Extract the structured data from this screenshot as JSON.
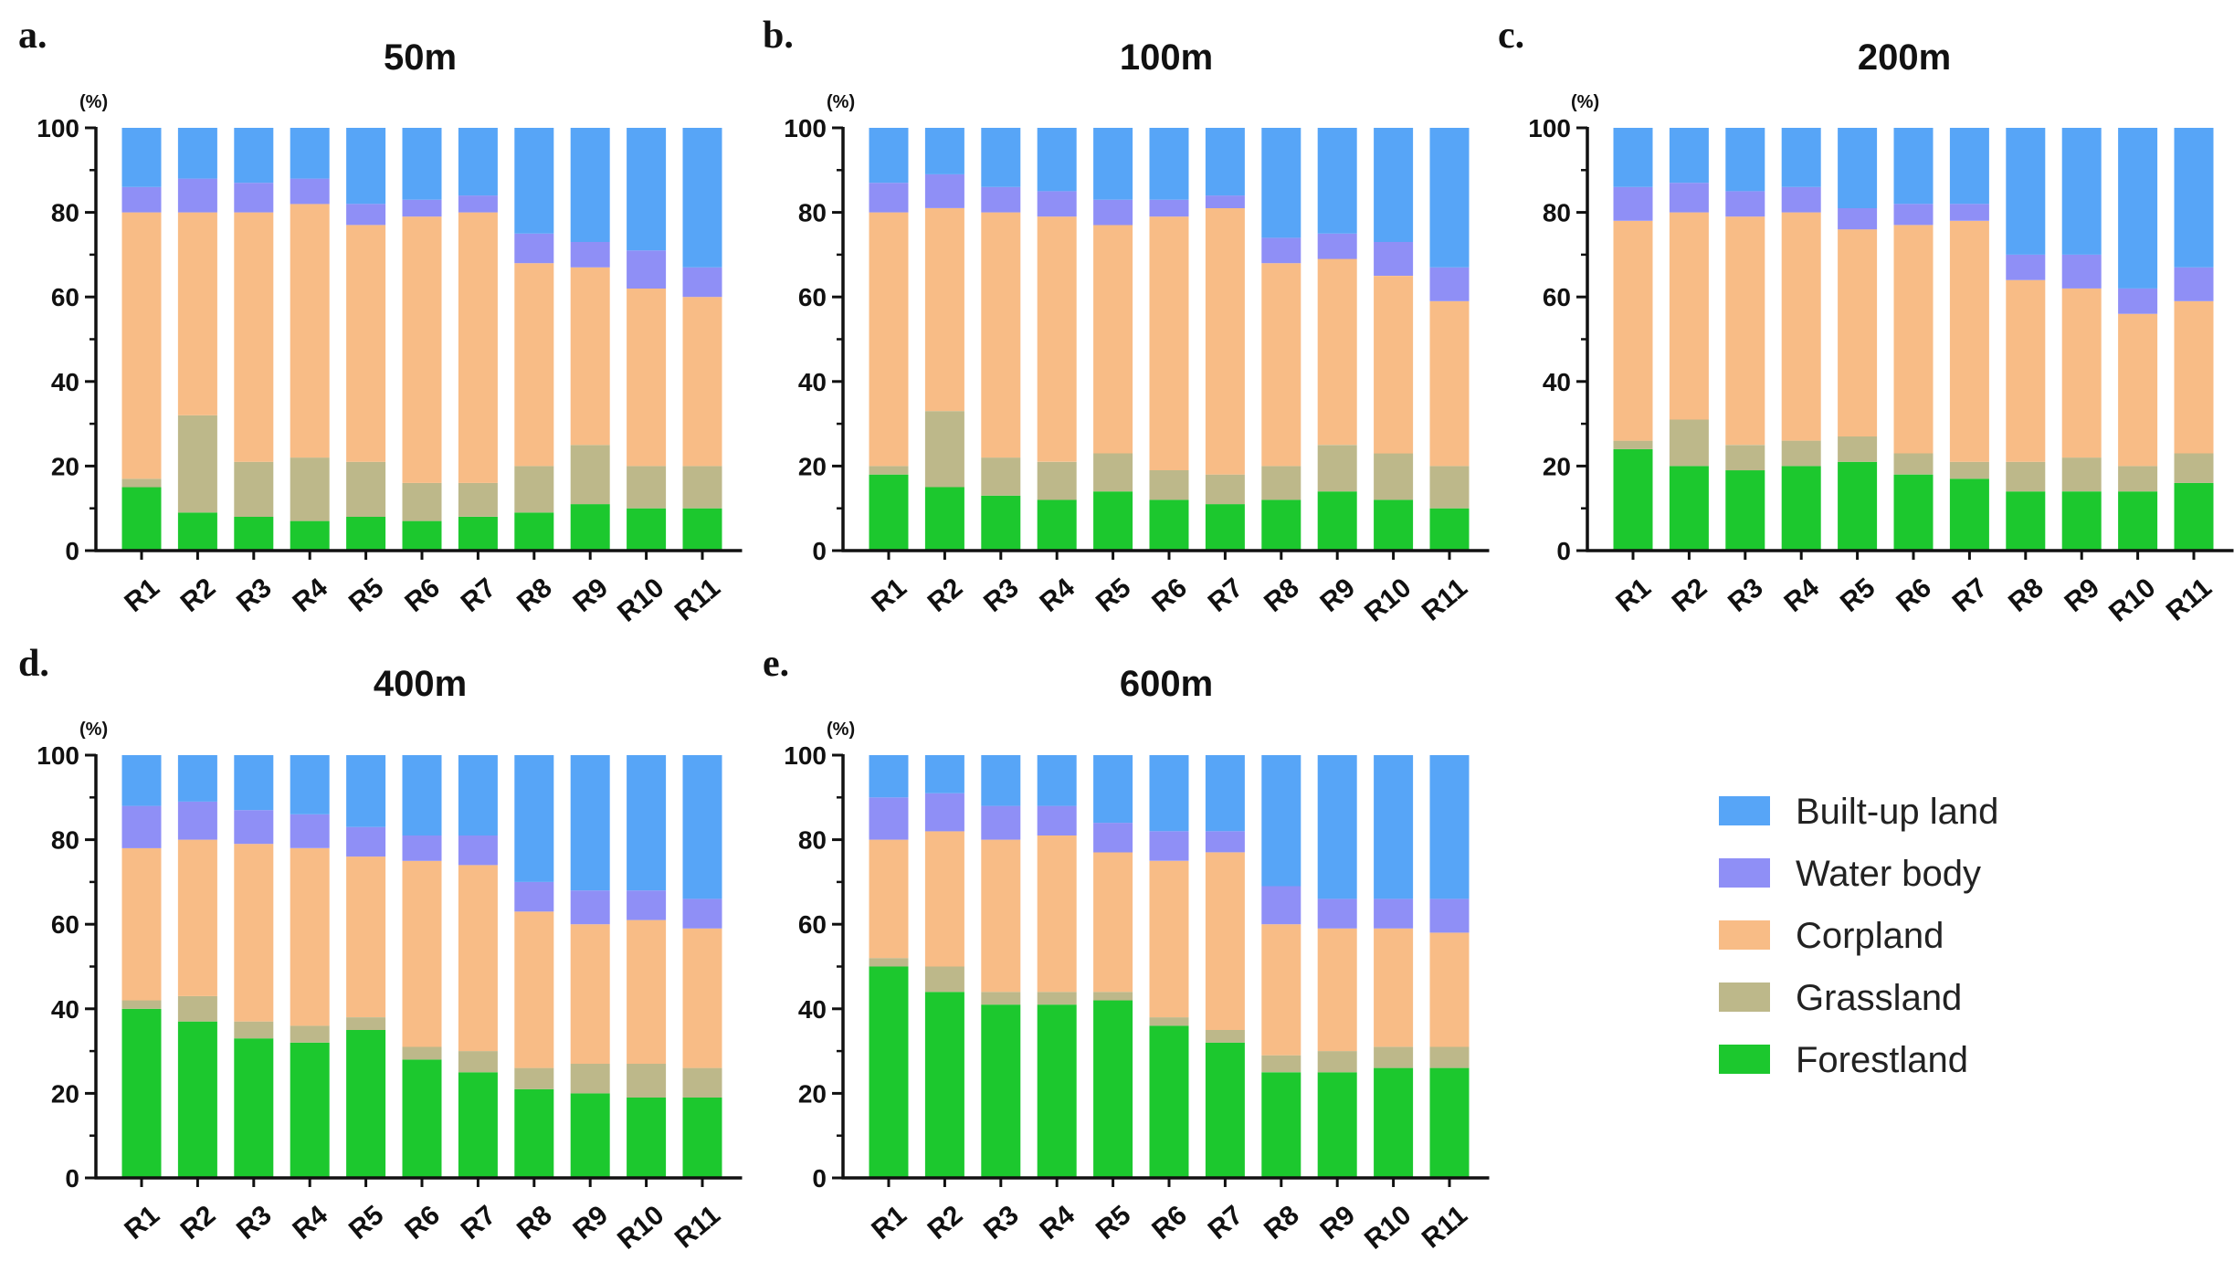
{
  "legend": [
    {
      "label": "Built-up land",
      "color": "#57a5f7"
    },
    {
      "label": "Water body",
      "color": "#8f8ff6"
    },
    {
      "label": "Corpland",
      "color": "#f8bc86"
    },
    {
      "label": "Grassland",
      "color": "#bdb88a"
    },
    {
      "label": "Forestland",
      "color": "#1cc82e"
    }
  ],
  "y_unit": "(%)",
  "chart_data": [
    {
      "type": "bar",
      "stacked": true,
      "letter": "a.",
      "title": "50m",
      "categories": [
        "R1",
        "R2",
        "R3",
        "R4",
        "R5",
        "R6",
        "R7",
        "R8",
        "R9",
        "R10",
        "R11"
      ],
      "ylim": [
        0,
        100
      ],
      "yticks": [
        0,
        20,
        40,
        60,
        80,
        100
      ],
      "series": [
        {
          "name": "Forestland",
          "values": [
            15,
            9,
            8,
            7,
            8,
            7,
            8,
            9,
            11,
            10,
            10
          ]
        },
        {
          "name": "Grassland",
          "values": [
            2,
            23,
            13,
            15,
            13,
            9,
            8,
            11,
            14,
            10,
            10
          ]
        },
        {
          "name": "Corpland",
          "values": [
            63,
            48,
            59,
            60,
            56,
            63,
            64,
            48,
            42,
            42,
            40
          ]
        },
        {
          "name": "Water body",
          "values": [
            6,
            8,
            7,
            6,
            5,
            4,
            4,
            7,
            6,
            9,
            7
          ]
        },
        {
          "name": "Built-up land",
          "values": [
            14,
            12,
            13,
            12,
            18,
            17,
            16,
            25,
            27,
            29,
            33
          ]
        }
      ]
    },
    {
      "type": "bar",
      "stacked": true,
      "letter": "b.",
      "title": "100m",
      "categories": [
        "R1",
        "R2",
        "R3",
        "R4",
        "R5",
        "R6",
        "R7",
        "R8",
        "R9",
        "R10",
        "R11"
      ],
      "ylim": [
        0,
        100
      ],
      "yticks": [
        0,
        20,
        40,
        60,
        80,
        100
      ],
      "series": [
        {
          "name": "Forestland",
          "values": [
            18,
            15,
            13,
            12,
            14,
            12,
            11,
            12,
            14,
            12,
            10
          ]
        },
        {
          "name": "Grassland",
          "values": [
            2,
            18,
            9,
            9,
            9,
            7,
            7,
            8,
            11,
            11,
            10
          ]
        },
        {
          "name": "Corpland",
          "values": [
            60,
            48,
            58,
            58,
            54,
            60,
            63,
            48,
            44,
            42,
            39
          ]
        },
        {
          "name": "Water body",
          "values": [
            7,
            8,
            6,
            6,
            6,
            4,
            3,
            6,
            6,
            8,
            8
          ]
        },
        {
          "name": "Built-up land",
          "values": [
            13,
            11,
            14,
            15,
            17,
            17,
            16,
            26,
            25,
            27,
            33
          ]
        }
      ]
    },
    {
      "type": "bar",
      "stacked": true,
      "letter": "c.",
      "title": "200m",
      "categories": [
        "R1",
        "R2",
        "R3",
        "R4",
        "R5",
        "R6",
        "R7",
        "R8",
        "R9",
        "R10",
        "R11"
      ],
      "ylim": [
        0,
        100
      ],
      "yticks": [
        0,
        20,
        40,
        60,
        80,
        100
      ],
      "series": [
        {
          "name": "Forestland",
          "values": [
            24,
            20,
            19,
            20,
            21,
            18,
            17,
            14,
            14,
            14,
            16
          ]
        },
        {
          "name": "Grassland",
          "values": [
            2,
            11,
            6,
            6,
            6,
            5,
            4,
            7,
            8,
            6,
            7
          ]
        },
        {
          "name": "Corpland",
          "values": [
            52,
            49,
            54,
            54,
            49,
            54,
            57,
            43,
            40,
            36,
            36
          ]
        },
        {
          "name": "Water body",
          "values": [
            8,
            7,
            6,
            6,
            5,
            5,
            4,
            6,
            8,
            6,
            8
          ]
        },
        {
          "name": "Built-up land",
          "values": [
            14,
            13,
            15,
            14,
            19,
            18,
            18,
            30,
            30,
            38,
            33
          ]
        }
      ]
    },
    {
      "type": "bar",
      "stacked": true,
      "letter": "d.",
      "title": "400m",
      "categories": [
        "R1",
        "R2",
        "R3",
        "R4",
        "R5",
        "R6",
        "R7",
        "R8",
        "R9",
        "R10",
        "R11"
      ],
      "ylim": [
        0,
        100
      ],
      "yticks": [
        0,
        20,
        40,
        60,
        80,
        100
      ],
      "series": [
        {
          "name": "Forestland",
          "values": [
            40,
            37,
            33,
            32,
            35,
            28,
            25,
            21,
            20,
            19,
            19
          ]
        },
        {
          "name": "Grassland",
          "values": [
            2,
            6,
            4,
            4,
            3,
            3,
            5,
            5,
            7,
            8,
            7
          ]
        },
        {
          "name": "Corpland",
          "values": [
            36,
            37,
            42,
            42,
            38,
            44,
            44,
            37,
            33,
            34,
            33
          ]
        },
        {
          "name": "Water body",
          "values": [
            10,
            9,
            8,
            8,
            7,
            6,
            7,
            7,
            8,
            7,
            7
          ]
        },
        {
          "name": "Built-up land",
          "values": [
            12,
            11,
            13,
            14,
            17,
            19,
            19,
            30,
            32,
            32,
            34
          ]
        }
      ]
    },
    {
      "type": "bar",
      "stacked": true,
      "letter": "e.",
      "title": "600m",
      "categories": [
        "R1",
        "R2",
        "R3",
        "R4",
        "R5",
        "R6",
        "R7",
        "R8",
        "R9",
        "R10",
        "R11"
      ],
      "ylim": [
        0,
        100
      ],
      "yticks": [
        0,
        20,
        40,
        60,
        80,
        100
      ],
      "series": [
        {
          "name": "Forestland",
          "values": [
            50,
            44,
            41,
            41,
            42,
            36,
            32,
            25,
            25,
            26,
            26
          ]
        },
        {
          "name": "Grassland",
          "values": [
            2,
            6,
            3,
            3,
            2,
            2,
            3,
            4,
            5,
            5,
            5
          ]
        },
        {
          "name": "Corpland",
          "values": [
            28,
            32,
            36,
            37,
            33,
            37,
            42,
            31,
            29,
            28,
            27
          ]
        },
        {
          "name": "Water body",
          "values": [
            10,
            9,
            8,
            7,
            7,
            7,
            5,
            9,
            7,
            7,
            8
          ]
        },
        {
          "name": "Built-up land",
          "values": [
            10,
            9,
            12,
            12,
            16,
            18,
            18,
            31,
            34,
            34,
            34
          ]
        }
      ]
    }
  ]
}
